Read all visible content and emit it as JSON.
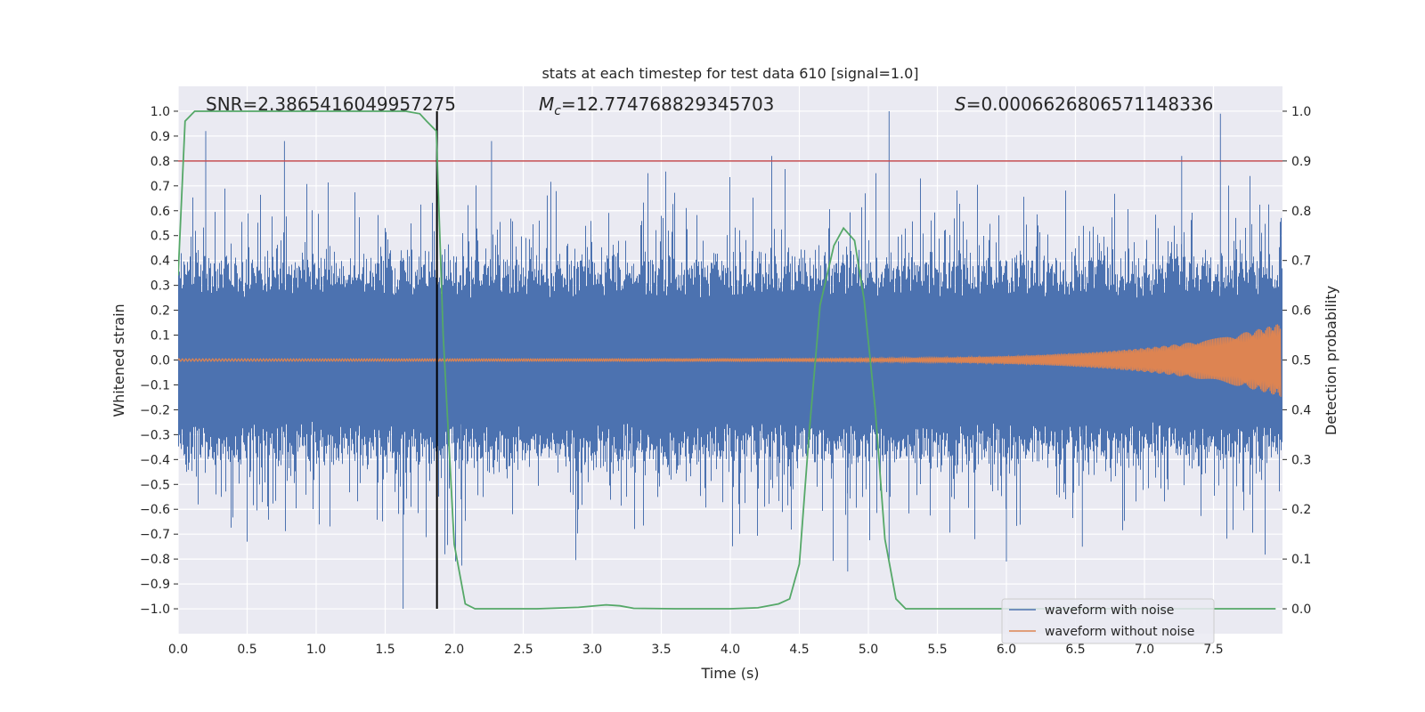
{
  "chart_data": {
    "type": "line",
    "title": "stats at each timestep for test data 610 [signal=1.0]",
    "xlabel": "Time (s)",
    "ylabel_left": "Whitened strain",
    "ylabel_right": "Detection probability",
    "xlim": [
      0.0,
      8.0
    ],
    "ylim_left": [
      -1.1,
      1.1
    ],
    "ylim_right": [
      -0.05,
      1.05
    ],
    "xticks": [
      "0.0",
      "0.5",
      "1.0",
      "1.5",
      "2.0",
      "2.5",
      "3.0",
      "3.5",
      "4.0",
      "4.5",
      "5.0",
      "5.5",
      "6.0",
      "6.5",
      "7.0",
      "7.5"
    ],
    "yticks_left": [
      "1.0",
      "0.9",
      "0.8",
      "0.7",
      "0.6",
      "0.5",
      "0.4",
      "0.3",
      "0.2",
      "0.1",
      "0.0",
      "-0.1",
      "-0.2",
      "-0.3",
      "-0.4",
      "-0.5",
      "-0.6",
      "-0.7",
      "-0.8",
      "-0.9",
      "-1.0"
    ],
    "yticks_right": [
      "1.0",
      "0.9",
      "0.8",
      "0.7",
      "0.6",
      "0.5",
      "0.4",
      "0.3",
      "0.2",
      "0.1",
      "0.0"
    ],
    "annotations": {
      "snr": "SNR=2.3865416049957275",
      "mc_symbol": "M",
      "mc_sub": "c",
      "mc_value": "=12.774768829345703",
      "s_symbol": "S",
      "s_value": "=0.0006626806571148336"
    },
    "threshold_right": 0.9,
    "threshold_color": "#c44e52",
    "vertical_marker_x": 1.875,
    "series": [
      {
        "name": "waveform with noise",
        "color": "#4c72b0",
        "axis": "left",
        "style": "noise",
        "envelope_typical": 0.38,
        "spike_max": 1.0,
        "spike_min": -1.0
      },
      {
        "name": "waveform without noise",
        "color": "#dd8452",
        "axis": "left",
        "style": "chirp",
        "amplitude_start": 0.005,
        "amplitude_end": 0.15
      },
      {
        "name": "detection probability",
        "color": "#55a868",
        "axis": "right",
        "x": [
          0.0,
          0.05,
          0.12,
          0.3,
          0.6,
          1.0,
          1.4,
          1.65,
          1.75,
          1.8,
          1.87,
          1.92,
          2.0,
          2.08,
          2.15,
          2.3,
          2.6,
          2.9,
          3.1,
          3.2,
          3.3,
          3.6,
          4.0,
          4.2,
          4.35,
          4.43,
          4.5,
          4.57,
          4.65,
          4.75,
          4.82,
          4.9,
          4.97,
          5.05,
          5.12,
          5.2,
          5.27,
          5.5,
          6.0,
          7.0,
          7.95
        ],
        "y": [
          0.67,
          0.98,
          1.0,
          1.0,
          1.0,
          1.0,
          1.0,
          1.0,
          0.995,
          0.98,
          0.96,
          0.55,
          0.13,
          0.01,
          0.0,
          0.0,
          0.0,
          0.003,
          0.008,
          0.006,
          0.001,
          0.0,
          0.0,
          0.002,
          0.01,
          0.02,
          0.09,
          0.35,
          0.61,
          0.73,
          0.765,
          0.74,
          0.62,
          0.4,
          0.14,
          0.02,
          0.0,
          0.0,
          0.0,
          0.0,
          0.0
        ]
      }
    ],
    "legend_location": "lower-right",
    "grid": true
  }
}
